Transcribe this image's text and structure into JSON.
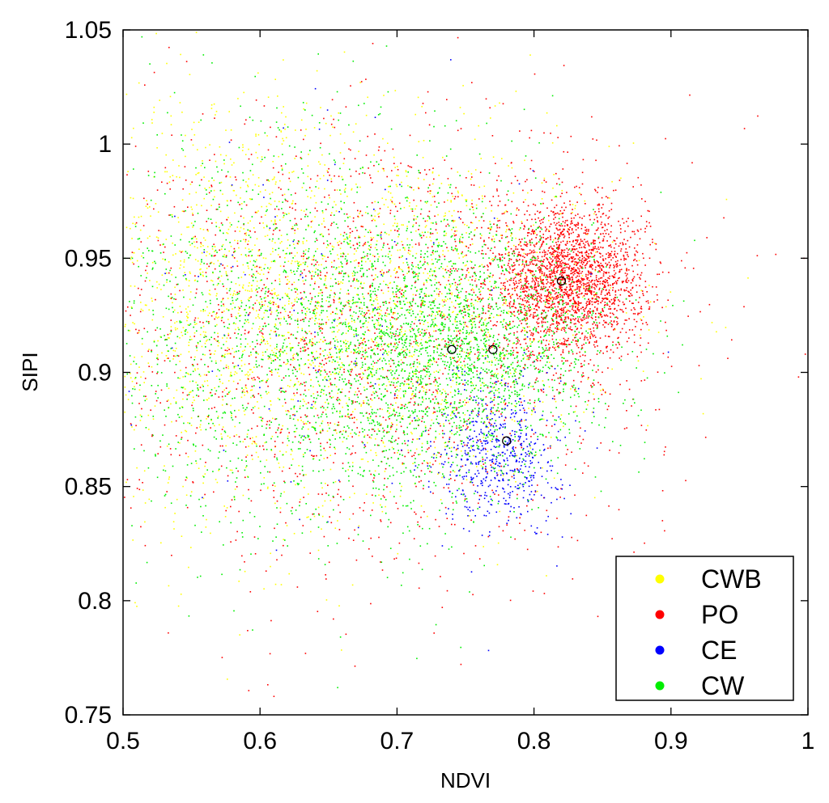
{
  "chart_data": {
    "type": "scatter",
    "xlabel": "NDVI",
    "ylabel": "SIPI",
    "xlim": [
      0.5,
      1.0
    ],
    "ylim": [
      0.75,
      1.05
    ],
    "xticks": [
      "0.5",
      "0.6",
      "0.7",
      "0.8",
      "0.9",
      "1"
    ],
    "yticks": [
      "0.75",
      "0.8",
      "0.85",
      "0.9",
      "0.95",
      "1",
      "1.05"
    ],
    "legend_position": "bottom-right",
    "series": [
      {
        "name": "CWB",
        "color": "#ffff00",
        "points": 2600,
        "centroid": [
          0.74,
          0.91
        ],
        "spread": [
          0.085,
          0.042
        ],
        "regions": [
          {
            "center": [
              0.7,
              0.925
            ],
            "spread": [
              0.08,
              0.038
            ],
            "weight": 0.6
          },
          {
            "center": [
              0.58,
              0.93
            ],
            "spread": [
              0.06,
              0.05
            ],
            "weight": 0.4
          }
        ]
      },
      {
        "name": "PO",
        "color": "#ff0000",
        "points": 4200,
        "centroid": [
          0.82,
          0.94
        ],
        "spread": [
          0.03,
          0.015
        ],
        "regions": [
          {
            "center": [
              0.825,
              0.94
            ],
            "spread": [
              0.028,
              0.016
            ],
            "weight": 0.55
          },
          {
            "center": [
              0.68,
              0.915
            ],
            "spread": [
              0.1,
              0.05
            ],
            "weight": 0.45
          }
        ]
      },
      {
        "name": "CE",
        "color": "#0000ff",
        "points": 700,
        "centroid": [
          0.78,
          0.87
        ],
        "spread": [
          0.022,
          0.016
        ],
        "regions": [
          {
            "center": [
              0.775,
              0.865
            ],
            "spread": [
              0.022,
              0.016
            ],
            "weight": 0.85
          },
          {
            "center": [
              0.66,
              0.92
            ],
            "spread": [
              0.09,
              0.05
            ],
            "weight": 0.15
          }
        ]
      },
      {
        "name": "CW",
        "color": "#00ee00",
        "points": 3800,
        "centroid": [
          0.77,
          0.91
        ],
        "spread": [
          0.06,
          0.03
        ],
        "regions": [
          {
            "center": [
              0.74,
              0.91
            ],
            "spread": [
              0.055,
              0.028
            ],
            "weight": 0.6
          },
          {
            "center": [
              0.62,
              0.915
            ],
            "spread": [
              0.08,
              0.045
            ],
            "weight": 0.4
          }
        ]
      }
    ],
    "centroids": [
      {
        "x": 0.74,
        "y": 0.91
      },
      {
        "x": 0.77,
        "y": 0.91
      },
      {
        "x": 0.78,
        "y": 0.87
      },
      {
        "x": 0.82,
        "y": 0.94
      }
    ]
  }
}
